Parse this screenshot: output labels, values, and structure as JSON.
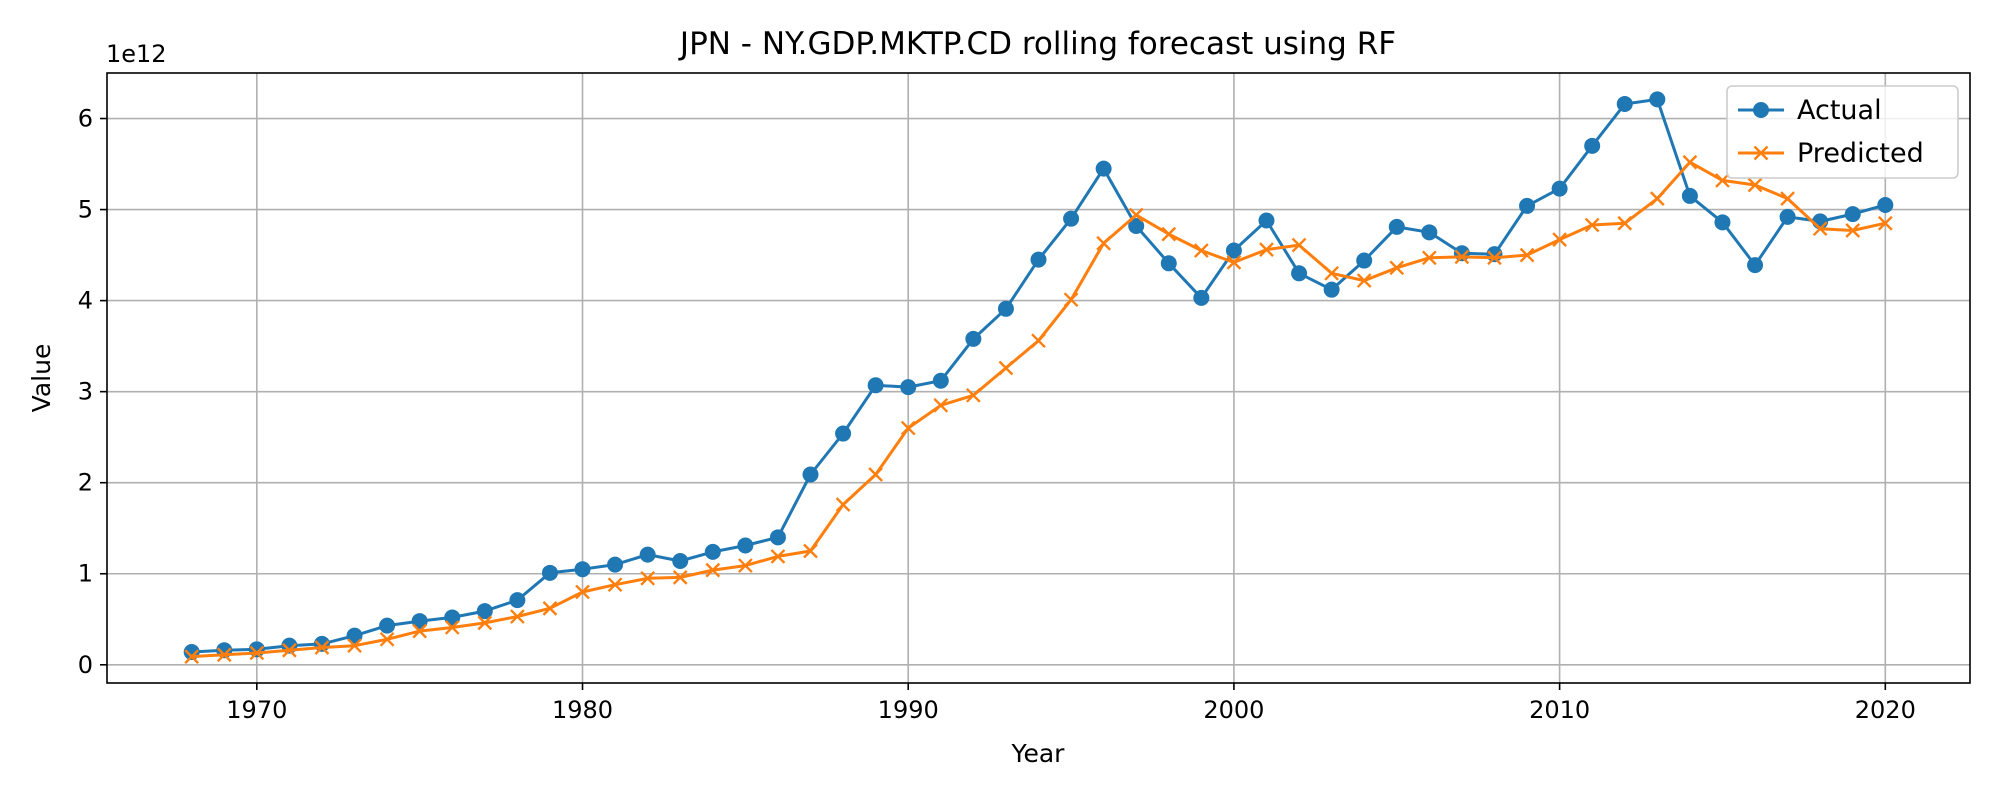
{
  "chart_data": {
    "type": "line",
    "title": "JPN - NY.GDP.MKTP.CD rolling forecast using RF",
    "xlabel": "Year",
    "ylabel": "Value",
    "y_offset_label": "1e12",
    "xlim": [
      1965.4,
      2022.6
    ],
    "ylim": [
      -0.2,
      6.5
    ],
    "y_unit_multiplier": 1000000000000.0,
    "x_ticks": [
      1970,
      1980,
      1990,
      2000,
      2010,
      2020
    ],
    "y_ticks": [
      0,
      1,
      2,
      3,
      4,
      5,
      6
    ],
    "grid": true,
    "legend_position": "top-right",
    "x": [
      1968,
      1969,
      1970,
      1971,
      1972,
      1973,
      1974,
      1975,
      1976,
      1977,
      1978,
      1979,
      1980,
      1981,
      1982,
      1983,
      1984,
      1985,
      1986,
      1987,
      1988,
      1989,
      1990,
      1991,
      1992,
      1993,
      1994,
      1995,
      1996,
      1997,
      1998,
      1999,
      2000,
      2001,
      2002,
      2003,
      2004,
      2005,
      2006,
      2007,
      2008,
      2009,
      2010,
      2011,
      2012,
      2013,
      2014,
      2015,
      2016,
      2017,
      2018,
      2019,
      2020
    ],
    "series": [
      {
        "name": "Actual",
        "color": "#1f77b4",
        "marker": "circle",
        "values": [
          0.14,
          0.16,
          0.17,
          0.21,
          0.23,
          0.32,
          0.43,
          0.48,
          0.52,
          0.59,
          0.71,
          1.01,
          1.05,
          1.1,
          1.21,
          1.14,
          1.24,
          1.31,
          1.4,
          2.09,
          2.54,
          3.07,
          3.05,
          3.12,
          3.58,
          3.91,
          4.45,
          4.9,
          5.45,
          4.82,
          4.41,
          4.03,
          4.55,
          4.88,
          4.3,
          4.12,
          4.44,
          4.81,
          4.75,
          4.52,
          4.51,
          5.04,
          5.23,
          5.7,
          6.16,
          6.21,
          5.15,
          4.86,
          4.39,
          4.92,
          4.87,
          4.95,
          5.05
        ]
      },
      {
        "name": "Predicted",
        "color": "#ff7f0e",
        "marker": "x",
        "values": [
          0.09,
          0.11,
          0.13,
          0.16,
          0.19,
          0.21,
          0.28,
          0.37,
          0.41,
          0.46,
          0.53,
          0.62,
          0.8,
          0.88,
          0.95,
          0.96,
          1.04,
          1.09,
          1.19,
          1.25,
          1.76,
          2.09,
          2.6,
          2.85,
          2.96,
          3.26,
          3.56,
          4.01,
          4.63,
          4.94,
          4.73,
          4.55,
          4.42,
          4.56,
          4.61,
          4.3,
          4.22,
          4.36,
          4.47,
          4.48,
          4.47,
          4.5,
          4.67,
          4.83,
          4.85,
          5.12,
          5.52,
          5.32,
          5.27,
          5.12,
          4.79,
          4.77,
          4.85
        ]
      }
    ]
  }
}
